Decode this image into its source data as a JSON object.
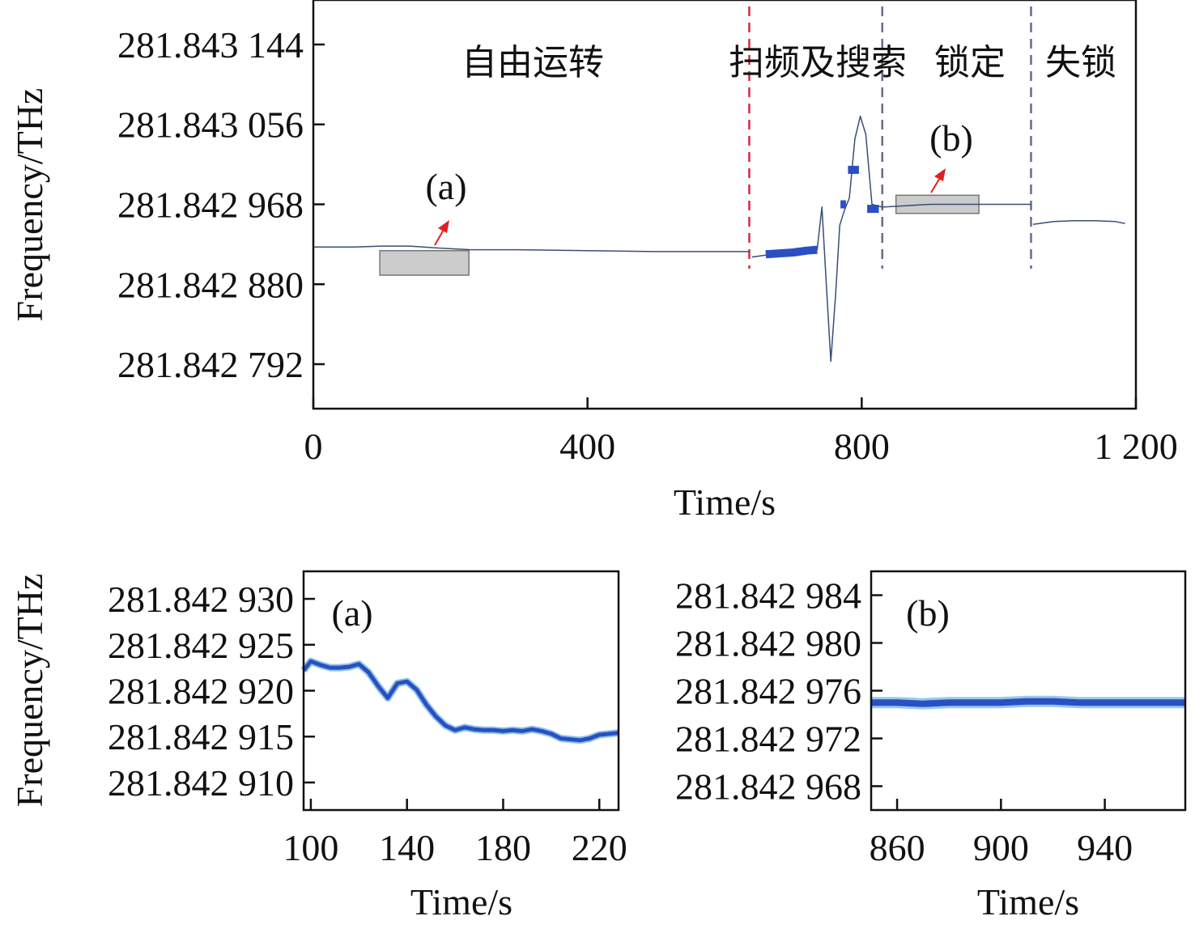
{
  "colors": {
    "trace": "#2a4fc4",
    "trace_light": "#3f9fd6",
    "thin_trace": "#3a4c78",
    "phase_boundary_red": "#d22a42",
    "phase_boundary_gray": "#6a6a88",
    "zoom_box_fill": "#cccccc",
    "zoom_box_stroke": "#777777",
    "arrow": "#e02020"
  },
  "chart_data": [
    {
      "type": "line",
      "panel": "main",
      "xlabel": "Time/s",
      "ylabel": "Frequency/THz",
      "xlim": [
        0,
        1200
      ],
      "ylim": [
        281.842743,
        281.843193
      ],
      "x_ticks": [
        0,
        400,
        800,
        1200
      ],
      "x_tick_labels": [
        "0",
        "400",
        "800",
        "1 200"
      ],
      "y_ticks": [
        281.843144,
        281.843056,
        281.842968,
        281.84288,
        281.842792
      ],
      "y_tick_labels": [
        "281.843 144",
        "281.843 056",
        "281.842 968",
        "281.842 880",
        "281.842 792"
      ],
      "phase_boundaries": [
        {
          "x": 636,
          "style": "red-dashed"
        },
        {
          "x": 830,
          "style": "gray-dashed"
        },
        {
          "x": 1047,
          "style": "gray-dashed"
        }
      ],
      "phase_labels": [
        {
          "text": "自由运转",
          "x": 320
        },
        {
          "text": "扫频及搜索",
          "x": 800
        },
        {
          "text": "锁定",
          "x": 955
        },
        {
          "text": "失锁",
          "x": 1125
        }
      ],
      "zoom_boxes": [
        {
          "label": "(a)",
          "x_range": [
            97,
            227
          ],
          "y_range": [
            281.84289,
            281.842917
          ]
        },
        {
          "label": "(b)",
          "x_range": [
            850,
            971
          ],
          "y_range": [
            281.842958,
            281.842978
          ]
        }
      ],
      "series": [
        {
          "style": "thin",
          "x": [
            0,
            60,
            100,
            140,
            180,
            230,
            300,
            400,
            500,
            600,
            636
          ],
          "y": [
            281.842921,
            281.842921,
            281.842922,
            281.842922,
            281.84292,
            281.842918,
            281.842918,
            281.842917,
            281.842916,
            281.842916,
            281.842916
          ]
        },
        {
          "style": "thin",
          "x": [
            640,
            660,
            700,
            735,
            742,
            748,
            755,
            762,
            768,
            775,
            782,
            790,
            798,
            806,
            815,
            830,
            900,
            1047
          ],
          "y": [
            281.84291,
            281.842912,
            281.842915,
            281.842918,
            281.842965,
            281.842885,
            281.842795,
            281.84287,
            281.842945,
            281.842962,
            281.842975,
            281.84304,
            281.843065,
            281.843045,
            281.842968,
            281.842965,
            281.842968,
            281.842968
          ]
        },
        {
          "style": "thick",
          "x": [
            660,
            680,
            700,
            720,
            735
          ],
          "y": [
            281.842913,
            281.842914,
            281.842915,
            281.842917,
            281.842918
          ]
        },
        {
          "style": "thick",
          "x": [
            769,
            777
          ],
          "y": [
            281.842968,
            281.842968
          ]
        },
        {
          "style": "thick",
          "x": [
            780,
            796
          ],
          "y": [
            281.843006,
            281.843006
          ]
        },
        {
          "style": "thick",
          "x": [
            808,
            825
          ],
          "y": [
            281.842963,
            281.842963
          ]
        },
        {
          "style": "thin",
          "x": [
            1050,
            1080,
            1110,
            1140,
            1170,
            1184
          ],
          "y": [
            281.842946,
            281.842949,
            281.84295,
            281.84295,
            281.842949,
            281.842947
          ]
        }
      ]
    },
    {
      "type": "line",
      "panel": "(a)",
      "label": "(a)",
      "xlabel": "Time/s",
      "ylabel": "Frequency/THz",
      "xlim": [
        97,
        228
      ],
      "ylim": [
        281.842907,
        281.842933
      ],
      "x_ticks": [
        100,
        140,
        180,
        220
      ],
      "x_tick_labels": [
        "100",
        "140",
        "180",
        "220"
      ],
      "y_ticks": [
        281.84293,
        281.842925,
        281.84292,
        281.842915,
        281.84291
      ],
      "y_tick_labels": [
        "281.842 930",
        "281.842 925",
        "281.842 920",
        "281.842 915",
        "281.842 910"
      ],
      "series": [
        {
          "x": [
            97,
            100,
            104,
            108,
            112,
            116,
            120,
            124,
            128,
            132,
            136,
            140,
            144,
            148,
            152,
            156,
            160,
            164,
            168,
            172,
            176,
            180,
            184,
            188,
            192,
            196,
            200,
            204,
            208,
            212,
            216,
            220,
            224,
            228
          ],
          "y": [
            281.8429222,
            281.8429232,
            281.8429228,
            281.8429225,
            281.8429225,
            281.8429226,
            281.8429229,
            281.842922,
            281.8429205,
            281.8429192,
            281.8429208,
            281.842921,
            281.8429201,
            281.8429185,
            281.8429172,
            281.8429162,
            281.8429157,
            281.842916,
            281.8429158,
            281.8429157,
            281.8429157,
            281.8429156,
            281.8429157,
            281.8429156,
            281.8429158,
            281.8429156,
            281.8429153,
            281.8429148,
            281.8429147,
            281.8429146,
            281.8429148,
            281.8429152,
            281.8429153,
            281.8429154
          ]
        }
      ]
    },
    {
      "type": "line",
      "panel": "(b)",
      "label": "(b)",
      "xlabel": "Time/s",
      "ylabel": "",
      "xlim": [
        850,
        971
      ],
      "ylim": [
        281.842966,
        281.842986
      ],
      "x_ticks": [
        860,
        900,
        940
      ],
      "x_tick_labels": [
        "860",
        "900",
        "940"
      ],
      "y_ticks": [
        281.842984,
        281.84298,
        281.842976,
        281.842972,
        281.842968
      ],
      "y_tick_labels": [
        "281.842 984",
        "281.842 980",
        "281.842 976",
        "281.842 972",
        "281.842 968"
      ],
      "series": [
        {
          "x": [
            850,
            860,
            870,
            880,
            890,
            900,
            910,
            920,
            930,
            940,
            950,
            960,
            971
          ],
          "y": [
            281.842975,
            281.842975,
            281.8429749,
            281.842975,
            281.842975,
            281.842975,
            281.8429751,
            281.8429751,
            281.842975,
            281.842975,
            281.842975,
            281.842975,
            281.842975
          ]
        }
      ]
    }
  ]
}
